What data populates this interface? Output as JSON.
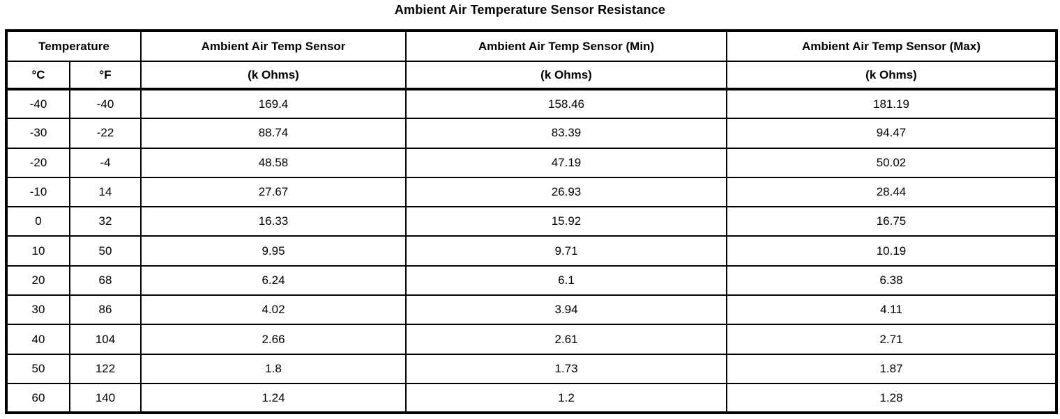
{
  "page": {
    "title": "Ambient Air Temperature Sensor Resistance"
  },
  "table": {
    "header": {
      "temperature_group": "Temperature",
      "col_celsius": "°C",
      "col_fahrenheit": "°F",
      "sensor": "Ambient Air Temp Sensor",
      "sensor_min": "Ambient Air Temp Sensor (Min)",
      "sensor_max": "Ambient Air Temp Sensor (Max)",
      "unit": "(k Ohms)"
    },
    "rows": [
      [
        "-40",
        "-40",
        "169.4",
        "158.46",
        "181.19"
      ],
      [
        "-30",
        "-22",
        "88.74",
        "83.39",
        "94.47"
      ],
      [
        "-20",
        "-4",
        "48.58",
        "47.19",
        "50.02"
      ],
      [
        "-10",
        "14",
        "27.67",
        "26.93",
        "28.44"
      ],
      [
        "0",
        "32",
        "16.33",
        "15.92",
        "16.75"
      ],
      [
        "10",
        "50",
        "9.95",
        "9.71",
        "10.19"
      ],
      [
        "20",
        "68",
        "6.24",
        "6.1",
        "6.38"
      ],
      [
        "30",
        "86",
        "4.02",
        "3.94",
        "4.11"
      ],
      [
        "40",
        "104",
        "2.66",
        "2.61",
        "2.71"
      ],
      [
        "50",
        "122",
        "1.8",
        "1.73",
        "1.87"
      ],
      [
        "60",
        "140",
        "1.24",
        "1.2",
        "1.28"
      ]
    ]
  }
}
